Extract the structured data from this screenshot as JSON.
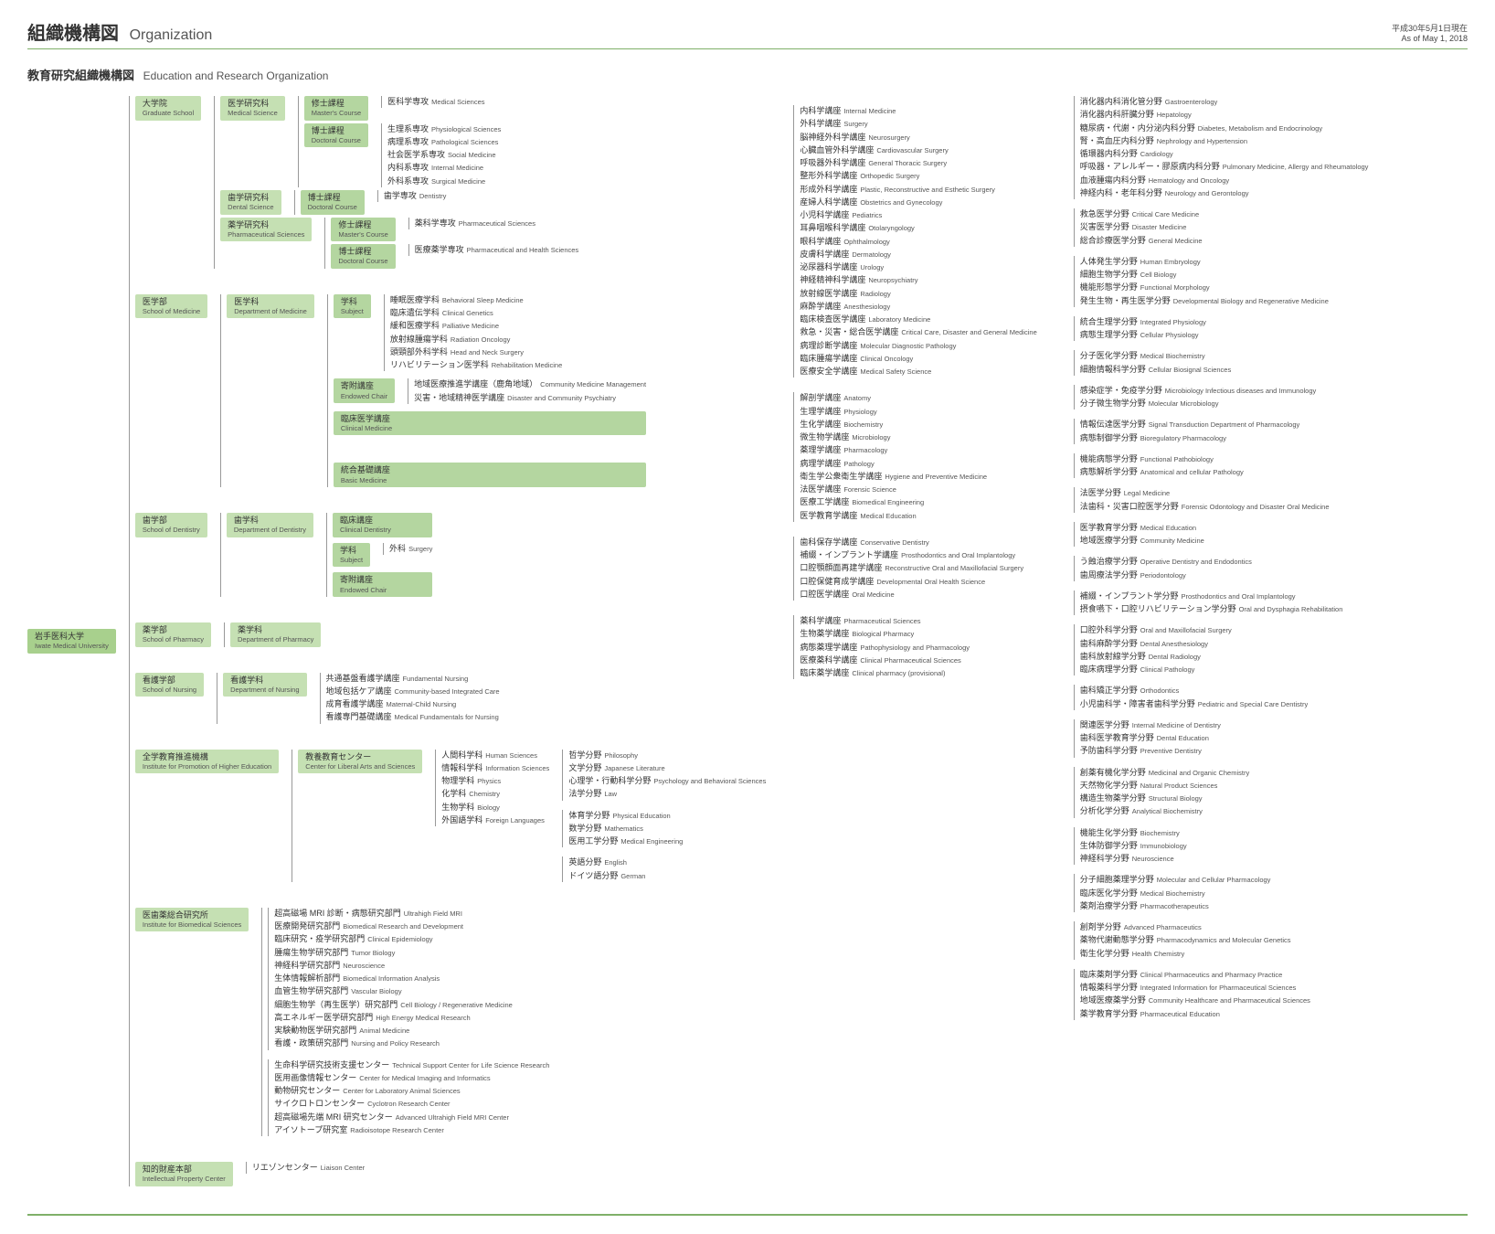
{
  "colors": {
    "header_border": "#7fb069",
    "root_box": "#a8d08d",
    "light_box": "#c5e0b3",
    "mid_box": "#b4d6a0",
    "footer": "#7fb069",
    "text": "#333333"
  },
  "header": {
    "title_ja": "組織機構図",
    "title_en": "Organization",
    "date_ja": "平成30年5月1日現在",
    "date_en": "As of May 1, 2018"
  },
  "subtitle": {
    "ja": "教育研究組織機構図",
    "en": "Education and Research Organization"
  },
  "root": {
    "ja": "岩手医科大学",
    "en": "Iwate Medical University"
  },
  "l2": {
    "grad": {
      "ja": "大学院",
      "en": "Graduate School"
    },
    "med": {
      "ja": "医学部",
      "en": "School of Medicine"
    },
    "dent": {
      "ja": "歯学部",
      "en": "School of Dentistry"
    },
    "pharm": {
      "ja": "薬学部",
      "en": "School of Pharmacy"
    },
    "nurs": {
      "ja": "看護学部",
      "en": "School of Nursing"
    },
    "lib": {
      "ja": "全学教育推進機構",
      "en": "Institute for Promotion of Higher Education"
    },
    "ibs": {
      "ja": "医歯薬総合研究所",
      "en": "Institute for Biomedical Sciences"
    },
    "ip": {
      "ja": "知的財産本部",
      "en": "Intellectual Property Center"
    }
  },
  "l3": {
    "grad_med": {
      "ja": "医学研究科",
      "en": "Medical Science"
    },
    "grad_dent": {
      "ja": "歯学研究科",
      "en": "Dental Science"
    },
    "grad_pharm": {
      "ja": "薬学研究科",
      "en": "Pharmaceutical Sciences"
    },
    "dept_med": {
      "ja": "医学科",
      "en": "Department of Medicine"
    },
    "dept_dent": {
      "ja": "歯学科",
      "en": "Department of Dentistry"
    },
    "dept_pharm": {
      "ja": "薬学科",
      "en": "Department of Pharmacy"
    },
    "dept_nurs": {
      "ja": "看護学科",
      "en": "Department of Nursing"
    },
    "ctr_lib": {
      "ja": "教養教育センター",
      "en": "Center for Liberal Arts and Sciences"
    }
  },
  "l4": {
    "masters": {
      "ja": "修士課程",
      "en": "Master's Course"
    },
    "doctoral": {
      "ja": "博士課程",
      "en": "Doctoral Course"
    },
    "subject": {
      "ja": "学科",
      "en": "Subject"
    },
    "endowed": {
      "ja": "寄附講座",
      "en": "Endowed Chair"
    },
    "clinmed": {
      "ja": "臨床医学講座",
      "en": "Clinical Medicine"
    },
    "basicmed": {
      "ja": "統合基礎講座",
      "en": "Basic Medicine"
    },
    "clindent": {
      "ja": "臨床講座",
      "en": "Clinical Dentistry"
    },
    "subject2": {
      "ja": "学科",
      "en": "Subject"
    },
    "endowed2": {
      "ja": "寄附講座",
      "en": "Endowed Chair"
    }
  },
  "grad_med_masters": [
    {
      "ja": "医科学専攻",
      "en": "Medical Sciences"
    }
  ],
  "grad_med_doctoral": [
    {
      "ja": "生理系専攻",
      "en": "Physiological Sciences"
    },
    {
      "ja": "病理系専攻",
      "en": "Pathological Sciences"
    },
    {
      "ja": "社会医学系専攻",
      "en": "Social Medicine"
    },
    {
      "ja": "内科系専攻",
      "en": "Internal Medicine"
    },
    {
      "ja": "外科系専攻",
      "en": "Surgical Medicine"
    }
  ],
  "grad_dent_doctoral": [
    {
      "ja": "歯学専攻",
      "en": "Dentistry"
    }
  ],
  "grad_pharm_masters": [
    {
      "ja": "薬科学専攻",
      "en": "Pharmaceutical Sciences"
    }
  ],
  "grad_pharm_doctoral": [
    {
      "ja": "医療薬学専攻",
      "en": "Pharmaceutical and Health Sciences"
    }
  ],
  "med_subject": [
    {
      "ja": "睡眠医療学科",
      "en": "Behavioral Sleep Medicine"
    },
    {
      "ja": "臨床遺伝学科",
      "en": "Clinical Genetics"
    },
    {
      "ja": "緩和医療学科",
      "en": "Palliative Medicine"
    },
    {
      "ja": "放射線腫瘍学科",
      "en": "Radiation Oncology"
    },
    {
      "ja": "頭頸部外科学科",
      "en": "Head and Neck Surgery"
    },
    {
      "ja": "リハビリテーション医学科",
      "en": "Rehabilitation Medicine"
    }
  ],
  "med_endowed": [
    {
      "ja": "地域医療推進学講座（鹿角地域）",
      "en": "Community Medicine Management"
    },
    {
      "ja": "災害・地域精神医学講座",
      "en": "Disaster and Community Psychiatry"
    }
  ],
  "dent_subject": [
    {
      "ja": "外科",
      "en": "Surgery"
    }
  ],
  "nursing": [
    {
      "ja": "共通基盤看護学講座",
      "en": "Fundamental Nursing"
    },
    {
      "ja": "地域包括ケア講座",
      "en": "Community-based Integrated Care"
    },
    {
      "ja": "成育看護学講座",
      "en": "Maternal-Child Nursing"
    },
    {
      "ja": "看護専門基礎講座",
      "en": "Medical Fundamentals for Nursing"
    }
  ],
  "liberal": [
    {
      "ja": "人間科学科",
      "en": "Human Sciences"
    },
    {
      "ja": "情報科学科",
      "en": "Information Sciences"
    },
    {
      "ja": "物理学科",
      "en": "Physics"
    },
    {
      "ja": "化学科",
      "en": "Chemistry"
    },
    {
      "ja": "生物学科",
      "en": "Biology"
    },
    {
      "ja": "外国語学科",
      "en": "Foreign Languages"
    }
  ],
  "liberal_sub1": [
    {
      "ja": "哲学分野",
      "en": "Philosophy"
    },
    {
      "ja": "文学分野",
      "en": "Japanese Literature"
    },
    {
      "ja": "心理学・行動科学分野",
      "en": "Psychology and Behavioral Sciences"
    },
    {
      "ja": "法学分野",
      "en": "Law"
    }
  ],
  "liberal_sub2": [
    {
      "ja": "体育学分野",
      "en": "Physical Education"
    },
    {
      "ja": "数学分野",
      "en": "Mathematics"
    },
    {
      "ja": "医用工学分野",
      "en": "Medical Engineering"
    }
  ],
  "liberal_sub3": [
    {
      "ja": "英語分野",
      "en": "English"
    },
    {
      "ja": "ドイツ語分野",
      "en": "German"
    }
  ],
  "ibs_depts": [
    {
      "ja": "超高磁場 MRI 診断・病態研究部門",
      "en": "Ultrahigh Field MRI"
    },
    {
      "ja": "医療開発研究部門",
      "en": "Biomedical Research and Development"
    },
    {
      "ja": "臨床研究・疫学研究部門",
      "en": "Clinical Epidemiology"
    },
    {
      "ja": "腫瘍生物学研究部門",
      "en": "Tumor Biology"
    },
    {
      "ja": "神経科学研究部門",
      "en": "Neuroscience"
    },
    {
      "ja": "生体情報解析部門",
      "en": "Biomedical Information Analysis"
    },
    {
      "ja": "血管生物学研究部門",
      "en": "Vascular Biology"
    },
    {
      "ja": "細胞生物学（再生医学）研究部門",
      "en": "Cell Biology / Regenerative Medicine"
    },
    {
      "ja": "高エネルギー医学研究部門",
      "en": "High Energy Medical Research"
    },
    {
      "ja": "実験動物医学研究部門",
      "en": "Animal Medicine"
    },
    {
      "ja": "看護・政策研究部門",
      "en": "Nursing and Policy Research"
    }
  ],
  "ibs_centers": [
    {
      "ja": "生命科学研究技術支援センター",
      "en": "Technical Support Center for Life Science Research"
    },
    {
      "ja": "医用画像情報センター",
      "en": "Center for Medical Imaging and Informatics"
    },
    {
      "ja": "動物研究センター",
      "en": "Center for Laboratory Animal Sciences"
    },
    {
      "ja": "サイクロトロンセンター",
      "en": "Cyclotron Research Center"
    },
    {
      "ja": "超高磁場先端 MRI 研究センター",
      "en": "Advanced Ultrahigh Field MRI Center"
    },
    {
      "ja": "アイソトープ研究室",
      "en": "Radioisotope Research Center"
    }
  ],
  "ip_items": [
    {
      "ja": "リエゾンセンター",
      "en": "Liaison Center"
    }
  ],
  "clinmed": [
    {
      "ja": "内科学講座",
      "en": "Internal Medicine"
    },
    {
      "ja": "外科学講座",
      "en": "Surgery"
    },
    {
      "ja": "脳神経外科学講座",
      "en": "Neurosurgery"
    },
    {
      "ja": "心臓血管外科学講座",
      "en": "Cardiovascular Surgery"
    },
    {
      "ja": "呼吸器外科学講座",
      "en": "General Thoracic Surgery"
    },
    {
      "ja": "整形外科学講座",
      "en": "Orthopedic Surgery"
    },
    {
      "ja": "形成外科学講座",
      "en": "Plastic, Reconstructive and Esthetic Surgery"
    },
    {
      "ja": "産婦人科学講座",
      "en": "Obstetrics and Gynecology"
    },
    {
      "ja": "小児科学講座",
      "en": "Pediatrics"
    },
    {
      "ja": "耳鼻咽喉科学講座",
      "en": "Otolaryngology"
    },
    {
      "ja": "眼科学講座",
      "en": "Ophthalmology"
    },
    {
      "ja": "皮膚科学講座",
      "en": "Dermatology"
    },
    {
      "ja": "泌尿器科学講座",
      "en": "Urology"
    },
    {
      "ja": "神経精神科学講座",
      "en": "Neuropsychiatry"
    },
    {
      "ja": "放射線医学講座",
      "en": "Radiology"
    },
    {
      "ja": "麻酔学講座",
      "en": "Anesthesiology"
    },
    {
      "ja": "臨床検査医学講座",
      "en": "Laboratory Medicine"
    },
    {
      "ja": "救急・災害・総合医学講座",
      "en": "Critical Care, Disaster and General Medicine"
    },
    {
      "ja": "病理診断学講座",
      "en": "Molecular Diagnostic Pathology"
    },
    {
      "ja": "臨床腫瘍学講座",
      "en": "Clinical Oncology"
    },
    {
      "ja": "医療安全学講座",
      "en": "Medical Safety Science"
    }
  ],
  "basicmed": [
    {
      "ja": "解剖学講座",
      "en": "Anatomy"
    },
    {
      "ja": "生理学講座",
      "en": "Physiology"
    },
    {
      "ja": "生化学講座",
      "en": "Biochemistry"
    },
    {
      "ja": "微生物学講座",
      "en": "Microbiology"
    },
    {
      "ja": "薬理学講座",
      "en": "Pharmacology"
    },
    {
      "ja": "病理学講座",
      "en": "Pathology"
    },
    {
      "ja": "衛生学公衆衛生学講座",
      "en": "Hygiene and Preventive Medicine"
    },
    {
      "ja": "法医学講座",
      "en": "Forensic Science"
    },
    {
      "ja": "医療工学講座",
      "en": "Biomedical Engineering"
    },
    {
      "ja": "医学教育学講座",
      "en": "Medical Education"
    }
  ],
  "clindent": [
    {
      "ja": "歯科保存学講座",
      "en": "Conservative Dentistry"
    },
    {
      "ja": "補綴・インプラント学講座",
      "en": "Prosthodontics and Oral Implantology"
    },
    {
      "ja": "口腔顎顔面再建学講座",
      "en": "Reconstructive Oral and Maxillofacial Surgery"
    },
    {
      "ja": "口腔保健育成学講座",
      "en": "Developmental Oral Health Science"
    },
    {
      "ja": "口腔医学講座",
      "en": "Oral Medicine"
    }
  ],
  "pharm": [
    {
      "ja": "薬科学講座",
      "en": "Pharmaceutical Sciences"
    },
    {
      "ja": "生物薬学講座",
      "en": "Biological Pharmacy"
    },
    {
      "ja": "病態薬理学講座",
      "en": "Pathophysiology and Pharmacology"
    },
    {
      "ja": "医療薬科学講座",
      "en": "Clinical Pharmaceutical Sciences"
    },
    {
      "ja": "臨床薬学講座",
      "en": "Clinical pharmacy (provisional)"
    }
  ],
  "rcol": {
    "r1": [
      {
        "ja": "消化器内科消化管分野",
        "en": "Gastroenterology"
      },
      {
        "ja": "消化器内科肝臓分野",
        "en": "Hepatology"
      },
      {
        "ja": "糖尿病・代謝・内分泌内科分野",
        "en": "Diabetes, Metabolism and Endocrinology"
      },
      {
        "ja": "腎・高血圧内科分野",
        "en": "Nephrology and Hypertension"
      },
      {
        "ja": "循環器内科分野",
        "en": "Cardiology"
      },
      {
        "ja": "呼吸器・アレルギー・膠原病内科分野",
        "en": "Pulmonary Medicine, Allergy and Rheumatology"
      },
      {
        "ja": "血液腫瘍内科分野",
        "en": "Hematology and Oncology"
      },
      {
        "ja": "神経内科・老年科分野",
        "en": "Neurology and Gerontology"
      }
    ],
    "r2": [
      {
        "ja": "救急医学分野",
        "en": "Critical Care Medicine"
      },
      {
        "ja": "災害医学分野",
        "en": "Disaster Medicine"
      },
      {
        "ja": "総合診療医学分野",
        "en": "General Medicine"
      }
    ],
    "r3": [
      {
        "ja": "人体発生学分野",
        "en": "Human Embryology"
      },
      {
        "ja": "細胞生物学分野",
        "en": "Cell Biology"
      },
      {
        "ja": "機能形態学分野",
        "en": "Functional Morphology"
      },
      {
        "ja": "発生生物・再生医学分野",
        "en": "Developmental Biology and Regenerative Medicine"
      }
    ],
    "r4": [
      {
        "ja": "統合生理学分野",
        "en": "Integrated Physiology"
      },
      {
        "ja": "病態生理学分野",
        "en": "Cellular Physiology"
      }
    ],
    "r5": [
      {
        "ja": "分子医化学分野",
        "en": "Medical Biochemistry"
      },
      {
        "ja": "細胞情報科学分野",
        "en": "Cellular Biosignal Sciences"
      }
    ],
    "r6": [
      {
        "ja": "感染症学・免疫学分野",
        "en": "Microbiology Infectious diseases and Immunology"
      },
      {
        "ja": "分子微生物学分野",
        "en": "Molecular Microbiology"
      }
    ],
    "r7": [
      {
        "ja": "情報伝達医学分野",
        "en": "Signal Transduction Department of Pharmacology"
      },
      {
        "ja": "病態制御学分野",
        "en": "Bioregulatory Pharmacology"
      }
    ],
    "r8": [
      {
        "ja": "機能病態学分野",
        "en": "Functional Pathobiology"
      },
      {
        "ja": "病態解析学分野",
        "en": "Anatomical and cellular Pathology"
      }
    ],
    "r9": [
      {
        "ja": "法医学分野",
        "en": "Legal Medicine"
      },
      {
        "ja": "法歯科・災害口腔医学分野",
        "en": "Forensic Odontology and Disaster Oral Medicine"
      }
    ],
    "r10": [
      {
        "ja": "医学教育学分野",
        "en": "Medical Education"
      },
      {
        "ja": "地域医療学分野",
        "en": "Community Medicine"
      }
    ],
    "r11": [
      {
        "ja": "う蝕治療学分野",
        "en": "Operative Dentistry and Endodontics"
      },
      {
        "ja": "歯周療法学分野",
        "en": "Periodontology"
      }
    ],
    "r12": [
      {
        "ja": "補綴・インプラント学分野",
        "en": "Prosthodontics and Oral Implantology"
      },
      {
        "ja": "摂食嚥下・口腔リハビリテーション学分野",
        "en": "Oral and Dysphagia Rehabilitation"
      }
    ],
    "r13": [
      {
        "ja": "口腔外科学分野",
        "en": "Oral and Maxillofacial Surgery"
      },
      {
        "ja": "歯科麻酔学分野",
        "en": "Dental Anesthesiology"
      },
      {
        "ja": "歯科放射線学分野",
        "en": "Dental Radiology"
      },
      {
        "ja": "臨床病理学分野",
        "en": "Clinical Pathology"
      }
    ],
    "r14": [
      {
        "ja": "歯科矯正学分野",
        "en": "Orthodontics"
      },
      {
        "ja": "小児歯科学・障害者歯科学分野",
        "en": "Pediatric and Special Care Dentistry"
      }
    ],
    "r15": [
      {
        "ja": "関連医学分野",
        "en": "Internal Medicine of Dentistry"
      },
      {
        "ja": "歯科医学教育学分野",
        "en": "Dental Education"
      },
      {
        "ja": "予防歯科学分野",
        "en": "Preventive Dentistry"
      }
    ],
    "r16": [
      {
        "ja": "創薬有機化学分野",
        "en": "Medicinal and Organic Chemistry"
      },
      {
        "ja": "天然物化学分野",
        "en": "Natural Product Sciences"
      },
      {
        "ja": "構造生物薬学分野",
        "en": "Structural Biology"
      },
      {
        "ja": "分析化学分野",
        "en": "Analytical Biochemistry"
      }
    ],
    "r17": [
      {
        "ja": "機能生化学分野",
        "en": "Biochemistry"
      },
      {
        "ja": "生体防御学分野",
        "en": "Immunobiology"
      },
      {
        "ja": "神経科学分野",
        "en": "Neuroscience"
      }
    ],
    "r18": [
      {
        "ja": "分子細胞薬理学分野",
        "en": "Molecular and Cellular Pharmacology"
      },
      {
        "ja": "臨床医化学分野",
        "en": "Medical Biochemistry"
      },
      {
        "ja": "薬剤治療学分野",
        "en": "Pharmacotherapeutics"
      }
    ],
    "r19": [
      {
        "ja": "創剤学分野",
        "en": "Advanced Pharmaceutics"
      },
      {
        "ja": "薬物代謝動態学分野",
        "en": "Pharmacodynamics and Molecular Genetics"
      },
      {
        "ja": "衛生化学分野",
        "en": "Health Chemistry"
      }
    ],
    "r20": [
      {
        "ja": "臨床薬剤学分野",
        "en": "Clinical Pharmaceutics and Pharmacy Practice"
      },
      {
        "ja": "情報薬科学分野",
        "en": "Integrated Information for Pharmaceutical Sciences"
      },
      {
        "ja": "地域医療薬学分野",
        "en": "Community Healthcare and Pharmaceutical Sciences"
      },
      {
        "ja": "薬学教育学分野",
        "en": "Pharmaceutical Education"
      }
    ]
  }
}
